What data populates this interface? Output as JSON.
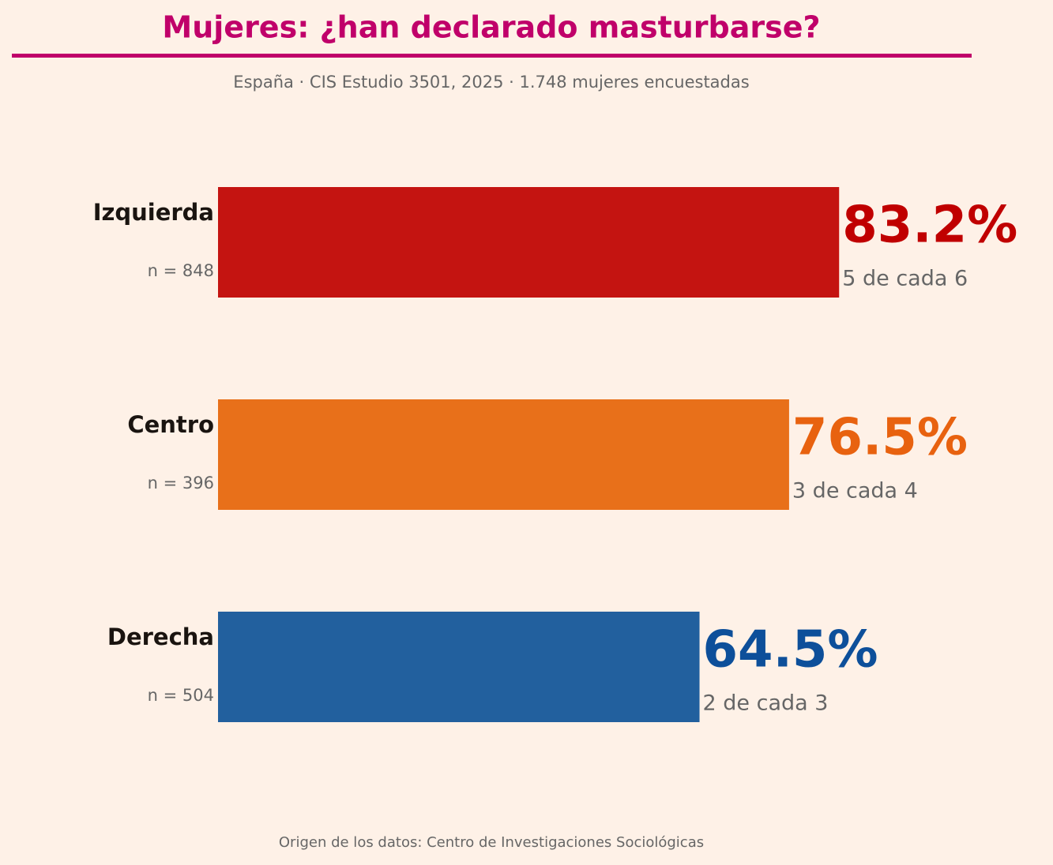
{
  "chart_data": {
    "type": "hbar",
    "title": "Mujeres: ¿han declarado masturbarse?",
    "subtitle": "España · CIS Estudio 3501, 2025 · 1.748 mujeres encuestadas",
    "footer": "Origen de los datos: Centro de Investigaciones Sociológicas",
    "categories": [
      "Izquierda",
      "Centro",
      "Derecha"
    ],
    "values": [
      83.2,
      76.5,
      64.5
    ],
    "value_labels": [
      "83.2%",
      "76.5%",
      "64.5%"
    ],
    "n_labels": [
      "n = 848",
      "n = 396",
      "n = 504"
    ],
    "ratio_labels": [
      "5 de cada 6",
      "3 de cada 4",
      "2 de cada 3"
    ],
    "colors": [
      "#c41411",
      "#e8701a",
      "#22609e"
    ],
    "label_colors": [
      "#c00000",
      "#e8620f",
      "#0d4f9a"
    ],
    "title_color": "#c0006a",
    "xlim": [
      0,
      100
    ]
  }
}
